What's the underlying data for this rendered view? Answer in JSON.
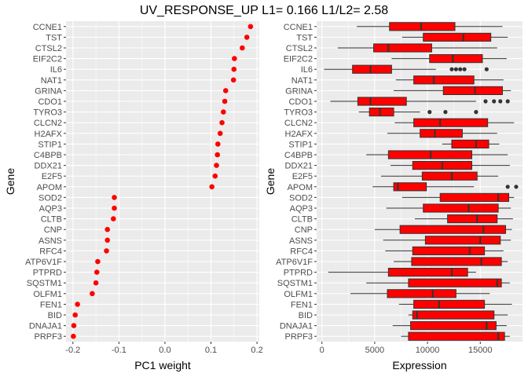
{
  "title": "UV_RESPONSE_UP L1= 0.166 L1/L2= 2.58",
  "colors": {
    "panel_bg": "#ebebeb",
    "grid_major": "#ffffff",
    "point": "#ff0000",
    "box_fill": "#ff0000",
    "box_line": "#333333",
    "outlier": "#333333",
    "tick_text": "#4d4d4d"
  },
  "chart_data": [
    {
      "type": "scatter",
      "xlabel": "PC1 weight",
      "ylabel": "Gene",
      "xlim": [
        -0.215,
        0.205
      ],
      "xticks": [
        -0.2,
        -0.1,
        0.0,
        0.1,
        0.2
      ],
      "xtick_labels": [
        "-0.2",
        "-0.1",
        "0.0",
        "0.1",
        "0.2"
      ],
      "grid": true,
      "categories": [
        "CCNE1",
        "TST",
        "CTSL2",
        "EIF2C2",
        "IL6",
        "NAT1",
        "GRINA",
        "CDO1",
        "TYRO3",
        "CLCN2",
        "H2AFX",
        "STIP1",
        "C4BPB",
        "DDX21",
        "E2F5",
        "APOM",
        "SOD2",
        "AQP3",
        "CLTB",
        "CNP",
        "ASNS",
        "RFC4",
        "ATP6V1F",
        "PTPRD",
        "SQSTM1",
        "OLFM1",
        "FEN1",
        "BID",
        "DNAJA1",
        "PRPF3"
      ],
      "values": [
        0.186,
        0.178,
        0.168,
        0.151,
        0.15,
        0.149,
        0.132,
        0.13,
        0.127,
        0.124,
        0.12,
        0.115,
        0.114,
        0.112,
        0.109,
        0.102,
        -0.11,
        -0.11,
        -0.112,
        -0.125,
        -0.125,
        -0.127,
        -0.146,
        -0.148,
        -0.15,
        -0.158,
        -0.19,
        -0.195,
        -0.198,
        -0.199
      ]
    },
    {
      "type": "boxplot",
      "xlabel": "Expression",
      "ylabel": "Gene",
      "xlim": [
        -500,
        19000
      ],
      "xticks": [
        0,
        5000,
        10000,
        15000
      ],
      "xtick_labels": [
        "0",
        "5000",
        "10000",
        "15000"
      ],
      "grid": true,
      "categories": [
        "CCNE1",
        "TST",
        "CTSL2",
        "EIF2C2",
        "IL6",
        "NAT1",
        "GRINA",
        "CDO1",
        "TYRO3",
        "CLCN2",
        "H2AFX",
        "STIP1",
        "C4BPB",
        "DDX21",
        "E2F5",
        "APOM",
        "SOD2",
        "AQP3",
        "CLTB",
        "CNP",
        "ASNS",
        "RFC4",
        "ATP6V1F",
        "PTPRD",
        "SQSTM1",
        "OLFM1",
        "FEN1",
        "BID",
        "DNAJA1",
        "PRPF3"
      ],
      "boxes": [
        {
          "min": 3300,
          "q1": 6400,
          "median": 9400,
          "q3": 12600,
          "max": 17100,
          "outliers": []
        },
        {
          "min": 7600,
          "q1": 9600,
          "median": 13400,
          "q3": 16000,
          "max": 17600,
          "outliers": []
        },
        {
          "min": 1500,
          "q1": 4900,
          "median": 6300,
          "q3": 10400,
          "max": 16600,
          "outliers": []
        },
        {
          "min": 6600,
          "q1": 10200,
          "median": 12400,
          "q3": 15200,
          "max": 17500,
          "outliers": []
        },
        {
          "min": 200,
          "q1": 2900,
          "median": 4600,
          "q3": 6600,
          "max": 10800,
          "outliers": [
            12300,
            12700,
            13100,
            13500,
            15600
          ]
        },
        {
          "min": 7000,
          "q1": 8700,
          "median": 10600,
          "q3": 14400,
          "max": 17200,
          "outliers": []
        },
        {
          "min": 6800,
          "q1": 11500,
          "median": 14500,
          "q3": 17100,
          "max": 17900,
          "outliers": []
        },
        {
          "min": 800,
          "q1": 3400,
          "median": 4600,
          "q3": 8000,
          "max": 14600,
          "outliers": [
            15500,
            16300,
            16900,
            17600
          ]
        },
        {
          "min": 3500,
          "q1": 4500,
          "median": 5500,
          "q3": 6800,
          "max": 9300,
          "outliers": [
            10200,
            11700,
            14600
          ]
        },
        {
          "min": 6900,
          "q1": 8700,
          "median": 11200,
          "q3": 15700,
          "max": 18200,
          "outliers": []
        },
        {
          "min": 6200,
          "q1": 9300,
          "median": 10700,
          "q3": 13300,
          "max": 16600,
          "outliers": []
        },
        {
          "min": 11400,
          "q1": 12300,
          "median": 14600,
          "q3": 15800,
          "max": 16800,
          "outliers": []
        },
        {
          "min": 4200,
          "q1": 6300,
          "median": 10300,
          "q3": 14200,
          "max": 17600,
          "outliers": []
        },
        {
          "min": 6500,
          "q1": 8600,
          "median": 11400,
          "q3": 14200,
          "max": 17800,
          "outliers": []
        },
        {
          "min": 5600,
          "q1": 9500,
          "median": 12300,
          "q3": 14700,
          "max": 16700,
          "outliers": []
        },
        {
          "min": 4800,
          "q1": 6800,
          "median": 7200,
          "q3": 9900,
          "max": 14400,
          "outliers": [
            17600,
            18400
          ]
        },
        {
          "min": 7600,
          "q1": 11200,
          "median": 16700,
          "q3": 17700,
          "max": 18200,
          "outliers": []
        },
        {
          "min": 6100,
          "q1": 9600,
          "median": 13900,
          "q3": 16700,
          "max": 17900,
          "outliers": []
        },
        {
          "min": 8800,
          "q1": 11900,
          "median": 14700,
          "q3": 16600,
          "max": 18100,
          "outliers": []
        },
        {
          "min": 5000,
          "q1": 7400,
          "median": 15300,
          "q3": 17400,
          "max": 18000,
          "outliers": []
        },
        {
          "min": 5800,
          "q1": 9800,
          "median": 15000,
          "q3": 16900,
          "max": 17900,
          "outliers": []
        },
        {
          "min": 6000,
          "q1": 8600,
          "median": 14000,
          "q3": 15400,
          "max": 17200,
          "outliers": []
        },
        {
          "min": 6800,
          "q1": 8500,
          "median": 15100,
          "q3": 17000,
          "max": 17600,
          "outliers": []
        },
        {
          "min": 600,
          "q1": 6300,
          "median": 12300,
          "q3": 13800,
          "max": 14600,
          "outliers": []
        },
        {
          "min": 4200,
          "q1": 8200,
          "median": 16600,
          "q3": 17000,
          "max": 17800,
          "outliers": []
        },
        {
          "min": 2700,
          "q1": 6200,
          "median": 10500,
          "q3": 12700,
          "max": 15900,
          "outliers": []
        },
        {
          "min": 7300,
          "q1": 8700,
          "median": 11100,
          "q3": 15400,
          "max": 18000,
          "outliers": []
        },
        {
          "min": 8200,
          "q1": 8600,
          "median": 9000,
          "q3": 16300,
          "max": 17600,
          "outliers": []
        },
        {
          "min": 6700,
          "q1": 8400,
          "median": 15600,
          "q3": 16500,
          "max": 17500,
          "outliers": []
        },
        {
          "min": 7500,
          "q1": 8200,
          "median": 16700,
          "q3": 17300,
          "max": 17800,
          "outliers": []
        }
      ]
    }
  ]
}
